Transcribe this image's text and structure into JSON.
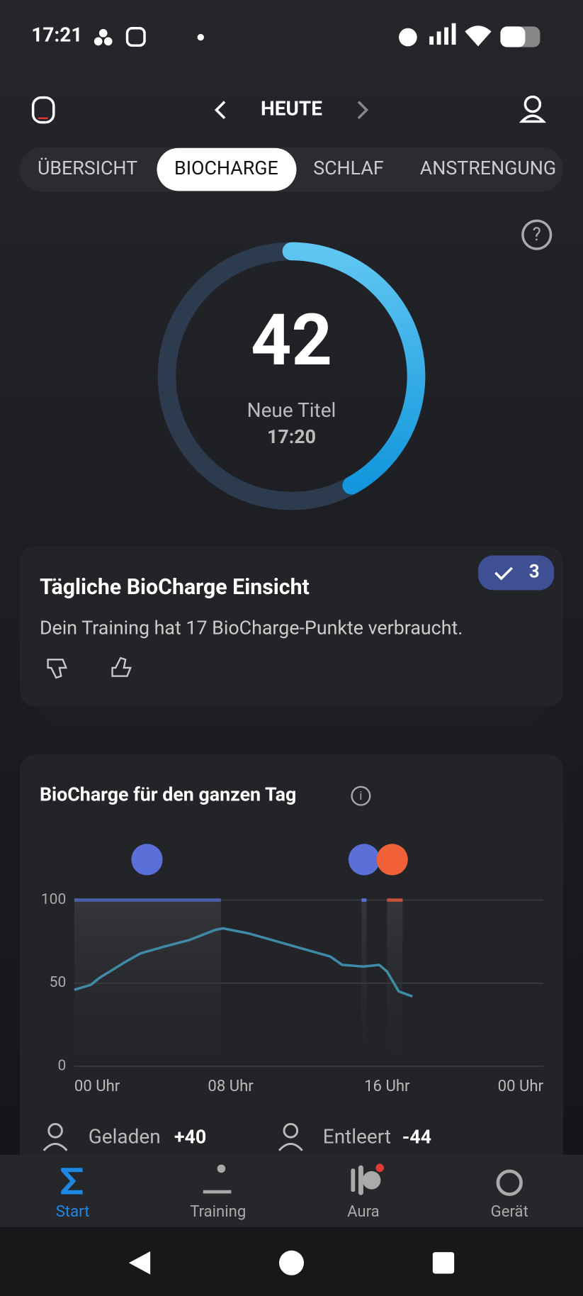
{
  "status_bar": {
    "time": "17:21"
  },
  "header": {
    "title": "HEUTE"
  },
  "tabs": [
    "ÜBERSICHT",
    "BIOCHARGE",
    "SCHLAF",
    "ANSTRENGUNG"
  ],
  "gauge": {
    "value": 42,
    "range": [
      0,
      100
    ],
    "label": "Neue Titel",
    "time": "17:20"
  },
  "insight": {
    "title": "Tägliche BioCharge Einsicht",
    "badge": "3",
    "text": "Dein Training hat 17 BioCharge-Punkte verbraucht."
  },
  "chart": {
    "type": "line",
    "title": "BioCharge für den ganzen Tag",
    "x": [
      0,
      0.85,
      1.27,
      2.5,
      3.4,
      4.6,
      5.9,
      7.2,
      7.6,
      8.9,
      11,
      13.1,
      13.7,
      14.8,
      15.6,
      16,
      16.6,
      17.3
    ],
    "values": [
      46,
      49,
      53,
      62,
      68,
      72,
      76,
      82,
      83,
      80,
      73,
      66,
      61,
      60,
      61,
      57,
      45,
      42
    ],
    "color": "#3f8aa6",
    "xlim": [
      0,
      24
    ],
    "xticks": [
      {
        "value": 0,
        "label": "00 Uhr"
      },
      {
        "value": 8,
        "label": "08 Uhr"
      },
      {
        "value": 16,
        "label": "16 Uhr"
      },
      {
        "value": 24,
        "label": "00 Uhr"
      }
    ],
    "ylim": [
      0,
      100
    ],
    "yticks": [
      0,
      50,
      100
    ],
    "grid": true,
    "periods": [
      {
        "start": 0,
        "end": 7.5,
        "color": "#4a5fa8"
      },
      {
        "start": 14.7,
        "end": 14.95,
        "color": "#5a6fd8"
      },
      {
        "start": 16,
        "end": 16.8,
        "color": "#c2503a"
      }
    ]
  },
  "stats": [
    {
      "label": "Geladen",
      "value": "+40"
    },
    {
      "label": "Entleert",
      "value": "-44"
    }
  ],
  "nav": [
    "Start",
    "Training",
    "Aura",
    "Gerät"
  ]
}
